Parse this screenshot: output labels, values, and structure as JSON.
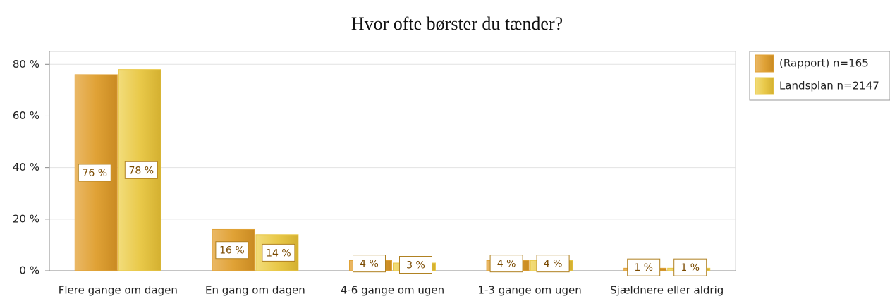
{
  "chart_data": {
    "type": "bar",
    "title": "Hvor ofte børster du tænder?",
    "categories": [
      "Flere gange om dagen",
      "En gang om dagen",
      "4-6 gange om ugen",
      "1-3 gange om ugen",
      "Sjældnere eller aldrig"
    ],
    "series": [
      {
        "name": "(Rapport) n=165",
        "color": "#e0a236",
        "values": [
          76,
          16,
          4,
          4,
          1
        ],
        "value_labels": [
          "76 %",
          "16 %",
          "4 %",
          "4 %",
          "1 %"
        ]
      },
      {
        "name": "Landsplan n=2147",
        "color": "#e9c94a",
        "values": [
          78,
          14,
          3,
          4,
          1
        ],
        "value_labels": [
          "78 %",
          "14 %",
          "3 %",
          "4 %",
          "1 %"
        ]
      }
    ],
    "ylim": [
      0,
      85
    ],
    "yticks": [
      {
        "value": 0,
        "label": "0 %"
      },
      {
        "value": 20,
        "label": "20 %"
      },
      {
        "value": 40,
        "label": "40 %"
      },
      {
        "value": 60,
        "label": "60 %"
      },
      {
        "value": 80,
        "label": "80 %"
      }
    ],
    "grid": true,
    "legend": "right"
  }
}
